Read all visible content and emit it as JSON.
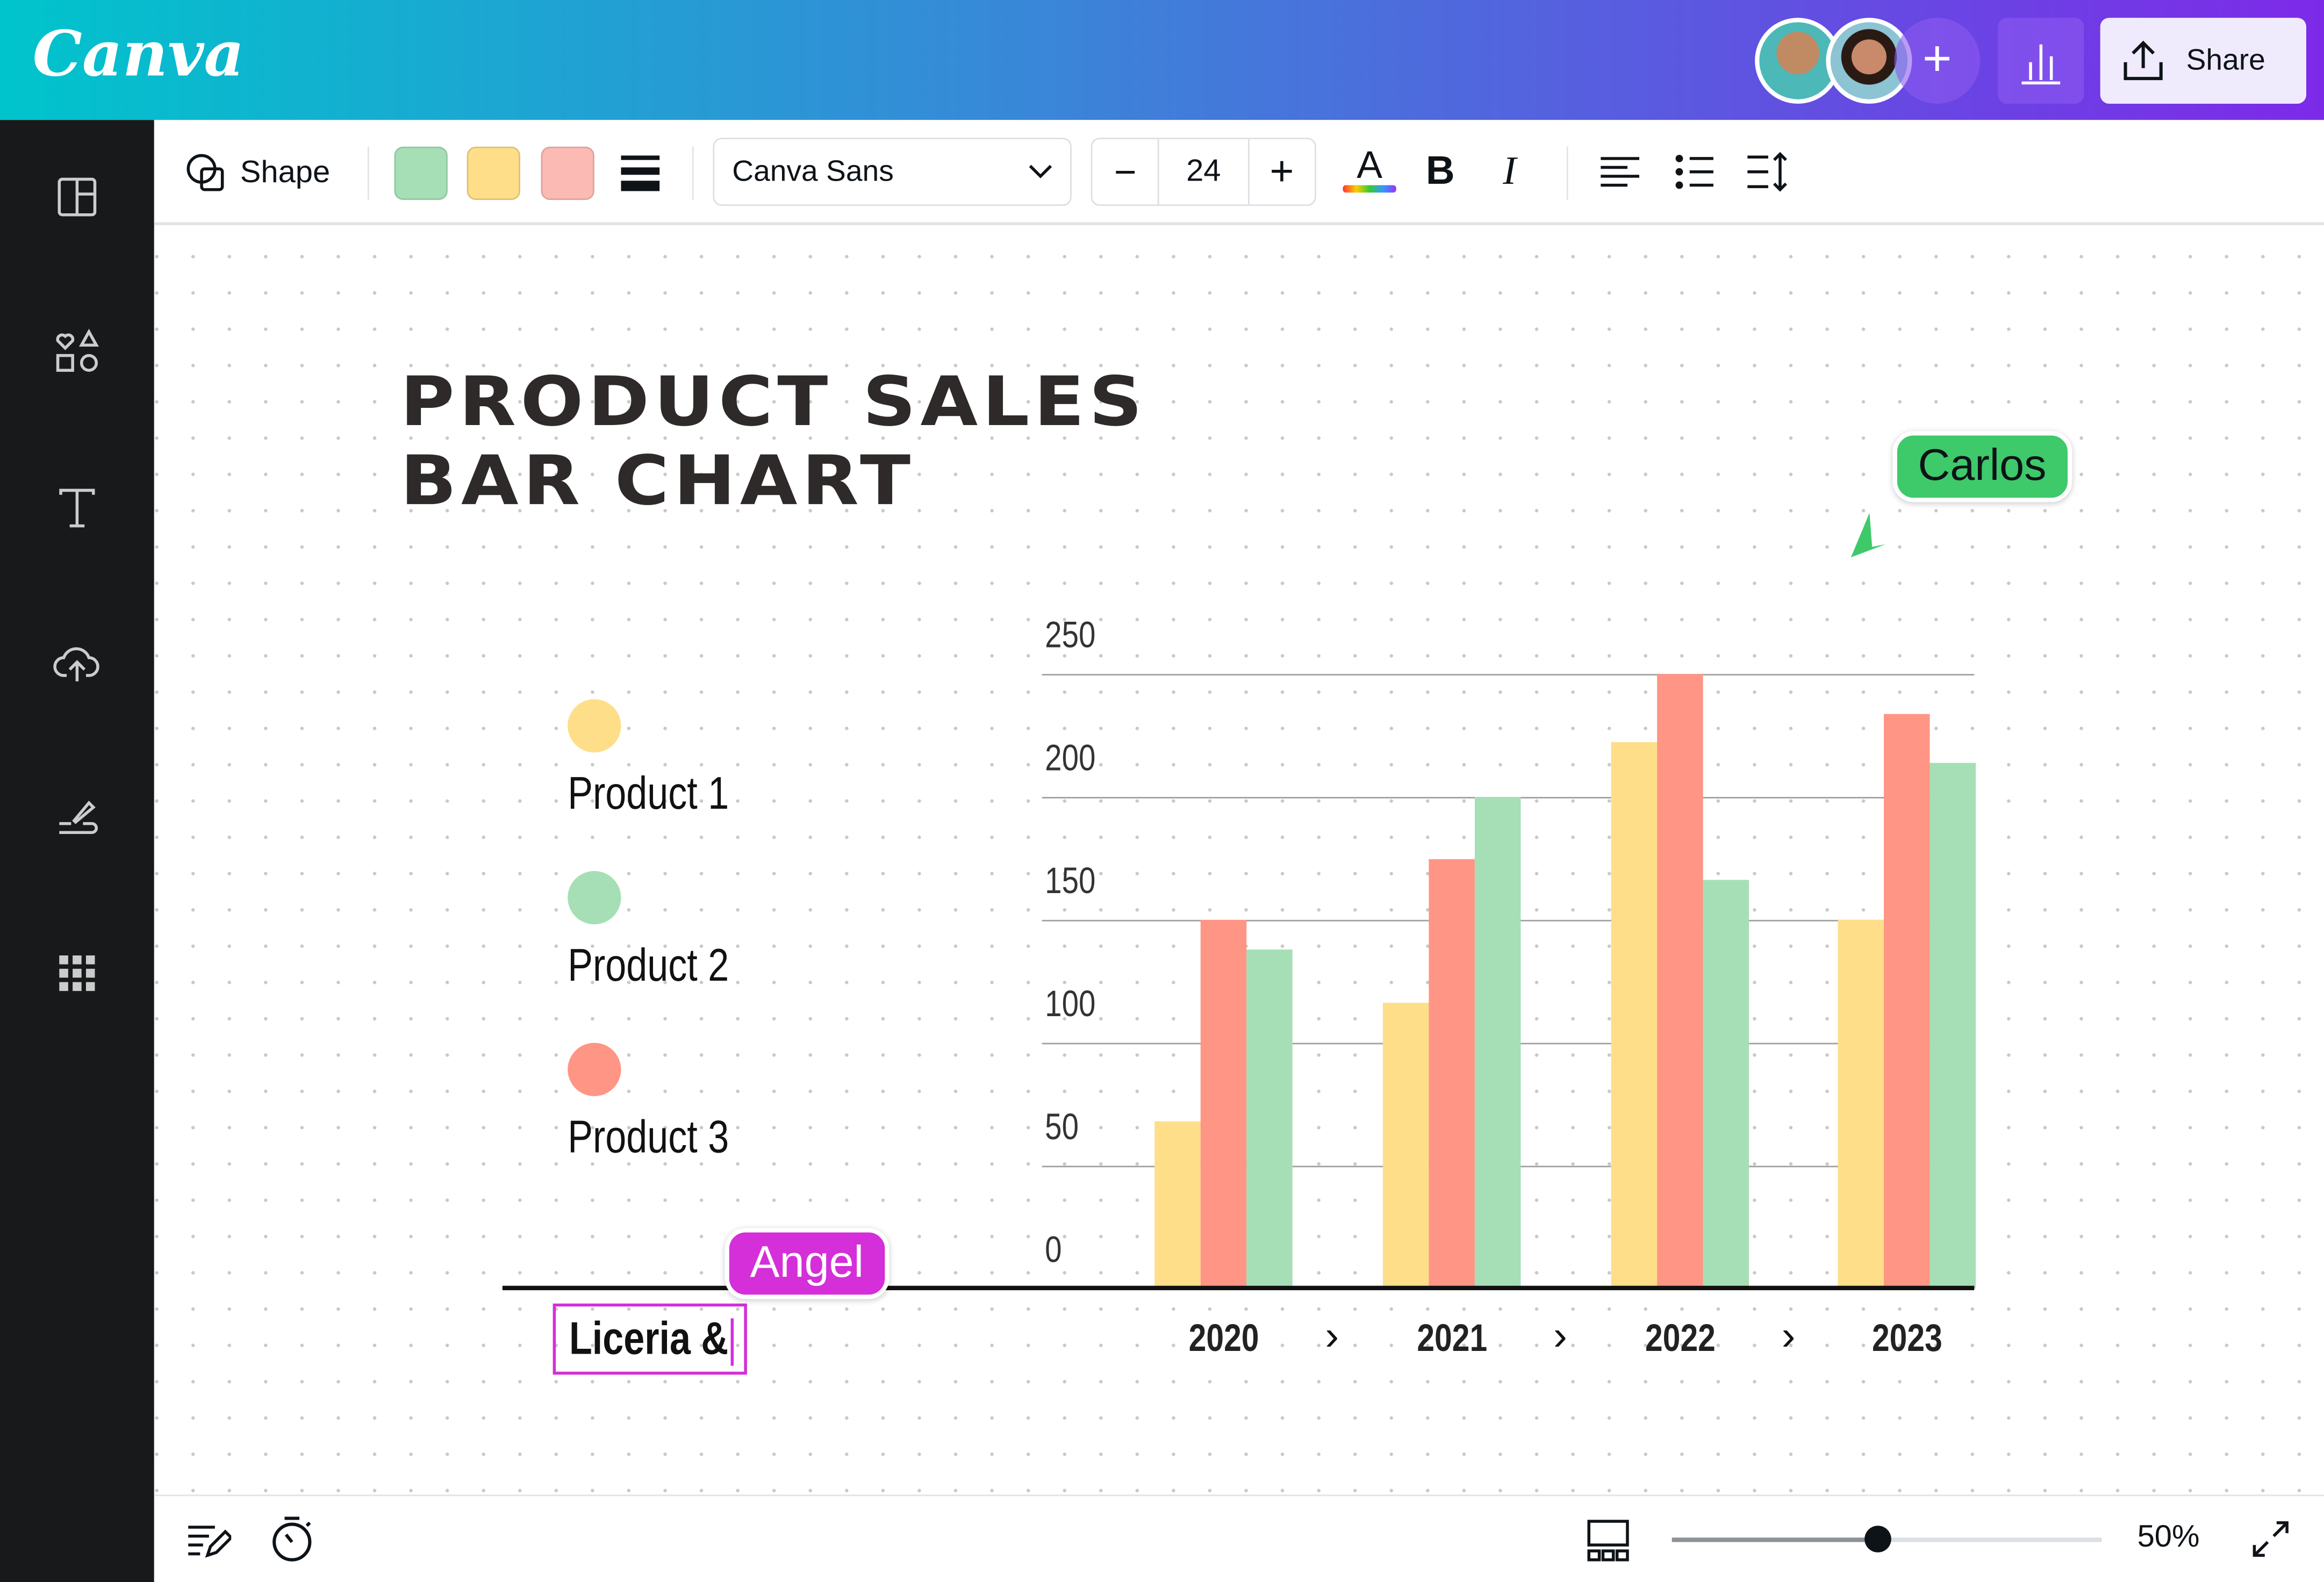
{
  "app": {
    "logo": "Canva"
  },
  "header": {
    "share_label": "Share",
    "add_collaborator": "+",
    "avatars": [
      "collaborator-1",
      "collaborator-2"
    ]
  },
  "toolbar": {
    "shape_label": "Shape",
    "swatches": [
      "#a6dfb5",
      "#ffde89",
      "#fbbbb4"
    ],
    "font_name": "Canva Sans",
    "font_size": "24",
    "minus": "−",
    "plus": "+",
    "text_color": "A",
    "bold": "B",
    "italic": "I"
  },
  "sidebar": {
    "items": [
      "design-panel",
      "elements",
      "text",
      "uploads",
      "draw",
      "apps"
    ]
  },
  "canvas": {
    "title_line1": "PRODUCT SALES",
    "title_line2": "BAR CHART",
    "cursor_carlos": "Carlos",
    "cursor_angel": "Angel",
    "editing_text": "Liceria &",
    "colors": {
      "carlos": "#3ec96a",
      "angel": "#d42fd8",
      "edit_box": "#d42fd8"
    }
  },
  "chart_data": {
    "type": "bar",
    "categories": [
      "2020",
      "2021",
      "2022",
      "2023"
    ],
    "series": [
      {
        "name": "Product 1",
        "color": "#ffde89",
        "values": [
          68,
          116,
          222,
          150
        ]
      },
      {
        "name": "Product 3",
        "color": "#ff9585",
        "values": [
          150,
          175,
          250,
          234
        ]
      },
      {
        "name": "Product 2",
        "color": "#a6dfb5",
        "values": [
          138,
          200,
          166,
          214
        ]
      }
    ],
    "legend": [
      "Product 1",
      "Product 2",
      "Product 3"
    ],
    "legend_colors": [
      "#ffde89",
      "#a6dfb5",
      "#ff9585"
    ],
    "yticks": [
      "0",
      "50",
      "100",
      "150",
      "200",
      "250"
    ],
    "ylim": [
      0,
      250
    ],
    "grid": true,
    "legend_placement": "left",
    "separator": "›"
  },
  "footer": {
    "zoom": "50%",
    "zoom_fraction": 0.48
  }
}
